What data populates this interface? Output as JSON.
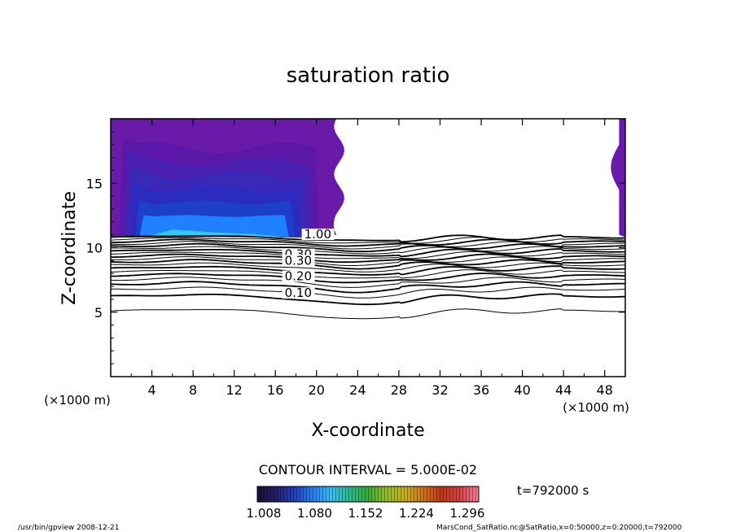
{
  "chart_data": {
    "type": "contour",
    "title": "saturation ratio",
    "xlabel": "X-coordinate",
    "ylabel": "Z-coordinate",
    "x_unit": "(×1000 m)",
    "y_unit": "(×1000 m)",
    "xlim": [
      0,
      50
    ],
    "ylim": [
      0,
      20
    ],
    "xticks": [
      4,
      8,
      12,
      16,
      20,
      24,
      28,
      32,
      36,
      40,
      44,
      48
    ],
    "yticks": [
      5,
      10,
      15
    ],
    "contour_interval_text": "CONTOUR INTERVAL = 5.000E-02",
    "time_text": "t=792000 s",
    "contour_labels": [
      "1.00",
      "0.30",
      "0.20",
      "0.10"
    ],
    "contour_levels": [
      0.05,
      0.1,
      0.15,
      0.2,
      0.25,
      0.3,
      0.35,
      0.4,
      0.45,
      0.5,
      0.55,
      0.6,
      0.65,
      0.7,
      0.75,
      0.8,
      0.85,
      0.9,
      0.95,
      1.0
    ],
    "colorbar": {
      "ticks": [
        "1.008",
        "1.080",
        "1.152",
        "1.224",
        "1.296"
      ],
      "colors": [
        "#1a0f3a",
        "#241c70",
        "#1e40c8",
        "#2080ff",
        "#30c0ff",
        "#20c090",
        "#30b030",
        "#90c020",
        "#c8b010",
        "#d87010",
        "#d03010",
        "#e04040",
        "#ff7a9a"
      ]
    },
    "supersaturated_region": {
      "x_range": [
        0,
        22.5
      ],
      "z_range": [
        10.8,
        20
      ],
      "fill_color": "#6a1aa8",
      "inner_colors": [
        "#5b18a8",
        "#4a20b0",
        "#3a28b8",
        "#2a2cc0",
        "#1e40c8",
        "#2080ff"
      ]
    },
    "right_strip": {
      "x_range": [
        49,
        50
      ],
      "z_range": [
        10.8,
        20
      ]
    },
    "footer_left": "/usr/bin/gpview   2008-12-21",
    "footer_right": "MarsCond_SatRatio.nc@SatRatio,x=0:50000,z=0:20000,t=792000"
  }
}
